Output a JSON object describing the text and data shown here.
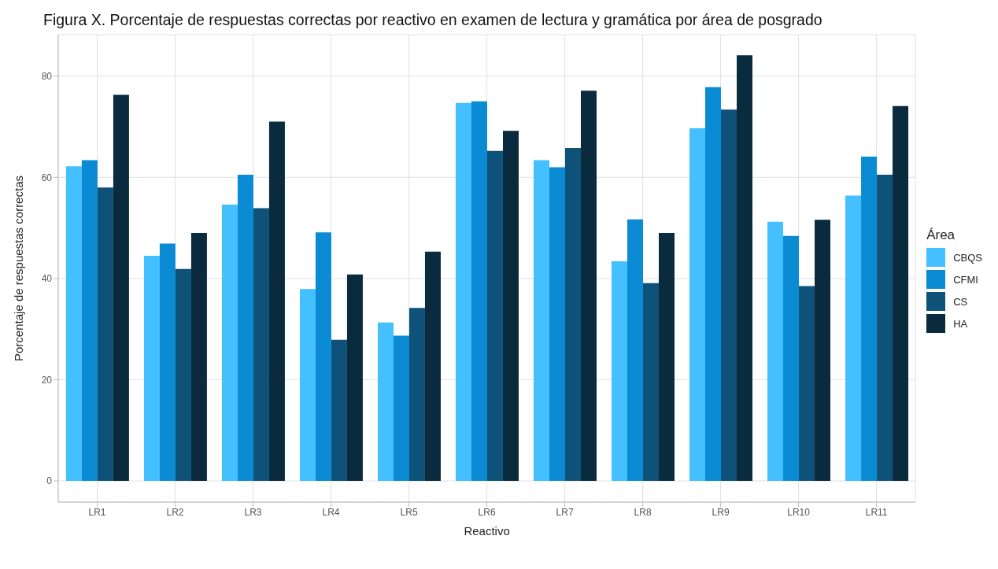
{
  "chart_data": {
    "type": "bar",
    "title": "Figura X. Porcentaje de respuestas correctas por reactivo en examen de lectura y gramática por área de posgrado",
    "xlabel": "Reactivo",
    "ylabel": "Porcentaje de respuestas correctas",
    "legend_title": "Área",
    "legend": "right",
    "grid": true,
    "categories": [
      "LR1",
      "LR2",
      "LR3",
      "LR4",
      "LR5",
      "LR6",
      "LR7",
      "LR8",
      "LR9",
      "LR10",
      "LR11"
    ],
    "ylim": [
      -4.2,
      88.2
    ],
    "yticks": [
      0,
      20,
      40,
      60,
      80
    ],
    "series": [
      {
        "name": "CBQS",
        "color": "#44bfff",
        "values": [
          62.2,
          44.5,
          54.6,
          37.9,
          31.3,
          74.7,
          63.4,
          43.4,
          69.7,
          51.2,
          56.4
        ]
      },
      {
        "name": "CFMI",
        "color": "#0a8bd3",
        "values": [
          63.4,
          46.9,
          60.5,
          49.1,
          28.7,
          75.0,
          62.0,
          51.7,
          77.8,
          48.4,
          64.1
        ]
      },
      {
        "name": "CS",
        "color": "#0e5279",
        "values": [
          58.0,
          41.9,
          53.9,
          27.9,
          34.2,
          65.2,
          65.8,
          39.1,
          73.4,
          38.5,
          60.5
        ]
      },
      {
        "name": "HA",
        "color": "#0a2a3d",
        "values": [
          76.3,
          49.0,
          71.0,
          40.8,
          45.3,
          69.2,
          77.1,
          49.0,
          84.1,
          51.6,
          74.1
        ]
      }
    ]
  }
}
